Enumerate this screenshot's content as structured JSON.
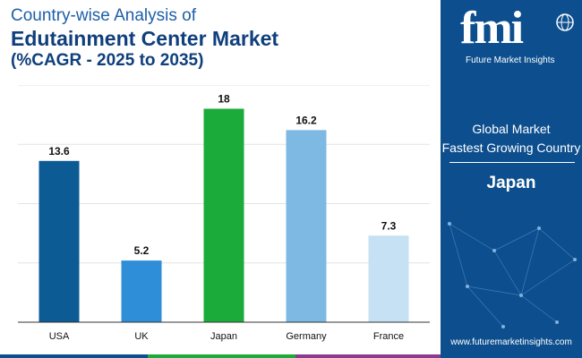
{
  "header": {
    "line1": "Country-wise Analysis of",
    "line2": "Edutainment Center Market",
    "line3": "(%CAGR - 2025 to 2035)"
  },
  "chart_data": {
    "type": "bar",
    "categories": [
      "USA",
      "UK",
      "Japan",
      "Germany",
      "France"
    ],
    "values": [
      13.6,
      5.2,
      18,
      16.2,
      7.3
    ],
    "value_labels": [
      "13.6",
      "5.2",
      "18",
      "16.2",
      "7.3"
    ],
    "colors": [
      "#0d5b95",
      "#2f8ed8",
      "#1aab3a",
      "#7db9e3",
      "#c5e1f3"
    ],
    "title": "Country-wise Analysis of Edutainment Center Market (%CAGR - 2025 to 2035)",
    "xlabel": "",
    "ylabel": "",
    "ylim": [
      0,
      20
    ],
    "grid": true
  },
  "panel": {
    "logo": "fmi",
    "logo_tagline": "Future Market Insights",
    "caption1": "Global Market",
    "caption2": "Fastest Growing Country",
    "country": "Japan",
    "website": "www.futuremarketinsights.com",
    "bg_color": "#0d4f8e"
  },
  "footer_colors": [
    "#0d4f8e",
    "#1aab3a",
    "#8a3b8f",
    "#0d4f8e"
  ]
}
